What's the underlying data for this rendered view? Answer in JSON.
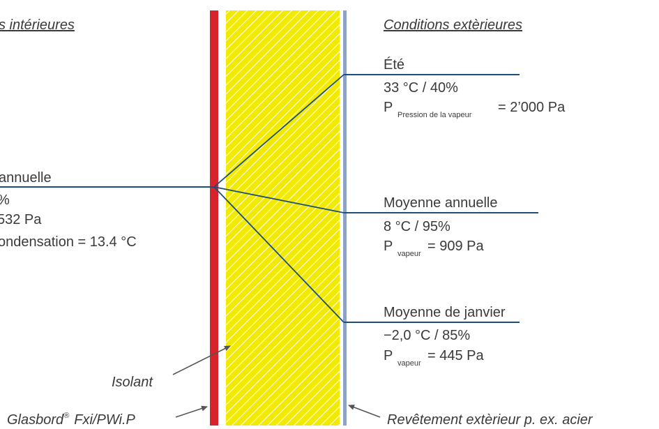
{
  "colors": {
    "line": "#1f4e79",
    "red_layer": "#d7232b",
    "insulation_fill": "#f2ea00",
    "hatch": "#ffffff",
    "cladding": "#8ea2c7",
    "text": "#3a3a3a",
    "arrow": "#555555"
  },
  "interior": {
    "title": "s intérieures",
    "avg_label": "annuelle",
    "avg_humidity": "%",
    "avg_pressure": "532 Pa",
    "avg_condensation": "ondensation = 13.4 °C"
  },
  "exterior": {
    "title": "Conditions extèrieures",
    "summer": {
      "label": "Été",
      "temp_rh": "33 °C / 40%",
      "p_symbol": "P",
      "p_subscript": "Pression de la vapeur",
      "p_value": "= 2’000 Pa"
    },
    "annual": {
      "label": "Moyenne annuelle",
      "temp_rh": "8 °C / 95%",
      "p_symbol": "P",
      "p_subscript": "vapeur",
      "p_value": "= 909 Pa"
    },
    "january": {
      "label": "Moyenne de janvier",
      "temp_rh": "−2,0 °C / 85%",
      "p_symbol": "P",
      "p_subscript": "vapeur",
      "p_value": "= 445 Pa"
    }
  },
  "callouts": {
    "insulation": "Isolant",
    "board": "Glasbord",
    "board_reg": "®",
    "board_model": "Fxi/PWi.P",
    "cladding": "Revêtement extèrieur p. ex. acier"
  }
}
